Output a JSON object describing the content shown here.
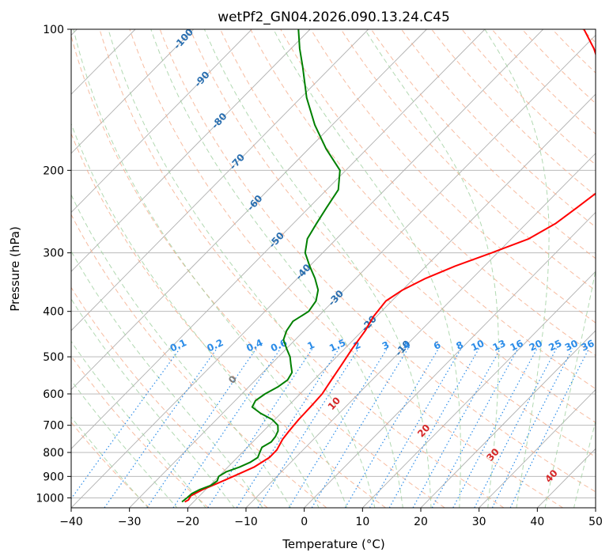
{
  "chart_data": {
    "type": "line",
    "title": "wetPf2_GN04.2026.090.13.24.C45",
    "xlabel": "Temperature (°C)",
    "ylabel": "Pressure (hPa)",
    "xlim": [
      -40,
      50
    ],
    "ylim_pressure_hpa": [
      1050,
      100
    ],
    "y_scale": "log",
    "skew": "skew-T",
    "grid": true,
    "x_ticks": [
      -40,
      -30,
      -20,
      -10,
      0,
      10,
      20,
      30,
      40,
      50
    ],
    "x_tick_labels": [
      "−40",
      "−30",
      "−20",
      "−10",
      "0",
      "10",
      "20",
      "30",
      "40",
      "50"
    ],
    "y_ticks": [
      100,
      200,
      300,
      400,
      500,
      600,
      700,
      800,
      900,
      1000
    ],
    "y_tick_labels": [
      "100",
      "200",
      "300",
      "400",
      "500",
      "600",
      "700",
      "800",
      "900",
      "1000"
    ],
    "series": [
      {
        "role": "temperature",
        "color": "#ff0000",
        "pressure": [
          1020,
          1010,
          990,
          960,
          930,
          900,
          860,
          820,
          790,
          750,
          720,
          680,
          640,
          600,
          560,
          520,
          480,
          440,
          410,
          380,
          360,
          340,
          320,
          300,
          280,
          260,
          240,
          220,
          200,
          180,
          160,
          140,
          120,
          110,
          100
        ],
        "temp": [
          -21.5,
          -21.2,
          -21.5,
          -20.5,
          -19.0,
          -17.5,
          -15.5,
          -14.5,
          -14.5,
          -15.3,
          -15.6,
          -15.9,
          -16.0,
          -16.2,
          -17.0,
          -17.8,
          -18.7,
          -19.5,
          -20.5,
          -21.0,
          -20.0,
          -18.0,
          -15.0,
          -11.0,
          -7.0,
          -5.0,
          -4.0,
          -3.0,
          -3.0,
          -5.0,
          -9.0,
          -15.0,
          -24.0,
          -28.0,
          -33.0
        ]
      },
      {
        "role": "dewpoint",
        "color": "#008000",
        "pressure": [
          1020,
          1000,
          980,
          960,
          940,
          920,
          900,
          880,
          860,
          840,
          820,
          800,
          780,
          760,
          740,
          720,
          700,
          680,
          660,
          640,
          620,
          600,
          580,
          560,
          540,
          520,
          500,
          480,
          460,
          440,
          420,
          400,
          380,
          360,
          340,
          320,
          300,
          280,
          260,
          240,
          220,
          200,
          180,
          160,
          140,
          120,
          110,
          100
        ],
        "temp": [
          -22.0,
          -21.8,
          -21.7,
          -21.0,
          -19.8,
          -19.5,
          -20.0,
          -19.5,
          -18.0,
          -17.0,
          -16.5,
          -17.0,
          -17.5,
          -16.8,
          -17.0,
          -17.5,
          -18.5,
          -20.5,
          -23.5,
          -26.0,
          -26.5,
          -26.0,
          -25.0,
          -24.5,
          -25.0,
          -26.5,
          -28.0,
          -30.0,
          -32.0,
          -33.0,
          -33.5,
          -32.5,
          -33.0,
          -34.5,
          -37.0,
          -40.0,
          -43.0,
          -45.0,
          -46.0,
          -47.0,
          -48.0,
          -51.0,
          -57.0,
          -63.0,
          -69.0,
          -75.0,
          -78.5,
          -82.0
        ]
      }
    ],
    "dry_adiabat_labels": [
      "-100",
      "-90",
      "-80",
      "-70",
      "-60",
      "-50",
      "-40",
      "-30",
      "-20",
      "-10"
    ],
    "mixing_ratio_labels": [
      "0.1",
      "0.2",
      "0.4",
      "0.6",
      "1",
      "1.5",
      "2",
      "3",
      "4",
      "6",
      "8",
      "10",
      "13",
      "16",
      "20",
      "25",
      "30",
      "36"
    ],
    "moist_adiabat_labels": [
      "0",
      "10",
      "20",
      "30",
      "40"
    ],
    "colors": {
      "isotherm": "#b0b0b0",
      "dry_adiabat": "#f4a582",
      "moist_adiabat": "#9fcf9f",
      "mixing_ratio": "#2b8ce8",
      "temperature": "#ff0000",
      "dewpoint": "#008000"
    }
  }
}
